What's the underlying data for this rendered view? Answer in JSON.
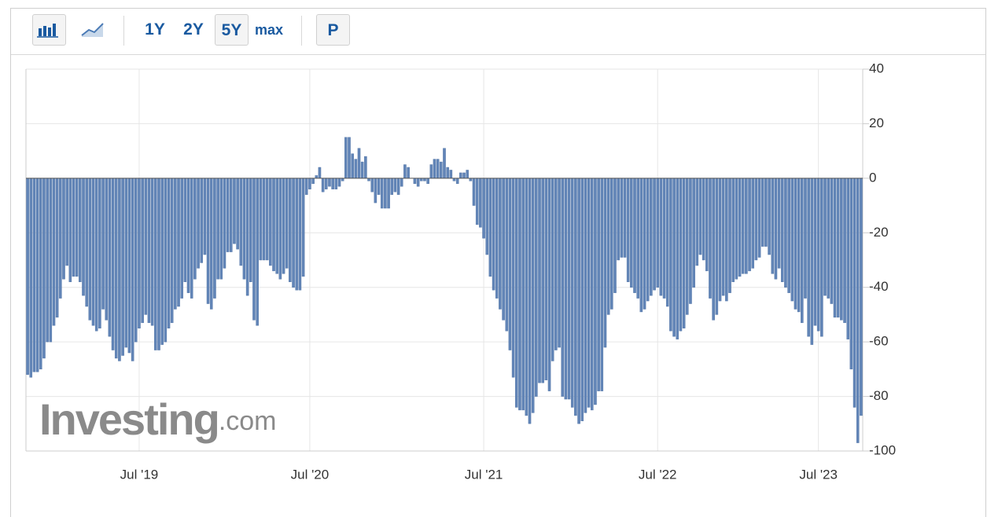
{
  "toolbar": {
    "ranges": [
      "1Y",
      "2Y",
      "5Y",
      "max"
    ],
    "price": "P"
  },
  "watermark": {
    "brand": "Investing",
    "suffix": ".com"
  },
  "chart_data": {
    "type": "bar",
    "color": "#6285b7",
    "grid": true,
    "ylim": [
      -100,
      40
    ],
    "yticks": [
      40,
      20,
      0,
      -20,
      -40,
      -60,
      -80,
      -100
    ],
    "categories": [
      null,
      null,
      null,
      null,
      null,
      null,
      null,
      null,
      null,
      null,
      null,
      null,
      null,
      null,
      null,
      null,
      null,
      null,
      null,
      null,
      null,
      null,
      null,
      null,
      null,
      null,
      null,
      null,
      null,
      null,
      null,
      null,
      null,
      null,
      "Jul '19",
      null,
      null,
      null,
      null,
      null,
      null,
      null,
      null,
      null,
      null,
      null,
      null,
      null,
      null,
      null,
      null,
      null,
      null,
      null,
      null,
      null,
      null,
      null,
      null,
      null,
      null,
      null,
      null,
      null,
      null,
      null,
      null,
      null,
      null,
      null,
      null,
      null,
      null,
      null,
      null,
      null,
      null,
      null,
      null,
      null,
      null,
      null,
      null,
      null,
      null,
      null,
      "Jul '20",
      null,
      null,
      null,
      null,
      null,
      null,
      null,
      null,
      null,
      null,
      null,
      null,
      null,
      null,
      null,
      null,
      null,
      null,
      null,
      null,
      null,
      null,
      null,
      null,
      null,
      null,
      null,
      null,
      null,
      null,
      null,
      null,
      null,
      null,
      null,
      null,
      null,
      null,
      null,
      null,
      null,
      null,
      null,
      null,
      null,
      null,
      null,
      null,
      null,
      null,
      null,
      null,
      "Jul '21",
      null,
      null,
      null,
      null,
      null,
      null,
      null,
      null,
      null,
      null,
      null,
      null,
      null,
      null,
      null,
      null,
      null,
      null,
      null,
      null,
      null,
      null,
      null,
      null,
      null,
      null,
      null,
      null,
      null,
      null,
      null,
      null,
      null,
      null,
      null,
      null,
      null,
      null,
      null,
      null,
      null,
      null,
      null,
      null,
      null,
      null,
      null,
      null,
      null,
      null,
      null,
      null,
      "Jul '22",
      null,
      null,
      null,
      null,
      null,
      null,
      null,
      null,
      null,
      null,
      null,
      null,
      null,
      null,
      null,
      null,
      null,
      null,
      null,
      null,
      null,
      null,
      null,
      null,
      null,
      null,
      null,
      null,
      null,
      null,
      null,
      null,
      null,
      null,
      null,
      null,
      null,
      null,
      null,
      null,
      null,
      null,
      null,
      null,
      null,
      null,
      null,
      null,
      "Jul '23",
      null,
      null,
      null,
      null,
      null,
      null,
      null,
      null,
      null,
      null,
      null,
      null,
      null
    ],
    "values": [
      -72,
      -73,
      -71,
      -71,
      -70,
      -66,
      -60,
      -60,
      -54,
      -51,
      -44,
      -37,
      -32,
      -38,
      -36,
      -36,
      -38,
      -43,
      -47,
      -52,
      -54,
      -56,
      -55,
      -48,
      -52,
      -58,
      -63,
      -66,
      -67,
      -65,
      -62,
      -64,
      -67,
      -60,
      -55,
      -53,
      -50,
      -53,
      -54,
      -63,
      -63,
      -61,
      -60,
      -55,
      -53,
      -48,
      -47,
      -44,
      -38,
      -42,
      -44,
      -37,
      -33,
      -31,
      -28,
      -46,
      -48,
      -44,
      -37,
      -37,
      -33,
      -27,
      -27,
      -24,
      -26,
      -32,
      -37,
      -43,
      -38,
      -52,
      -54,
      -30,
      -30,
      -30,
      -32,
      -34,
      -35,
      -37,
      -35,
      -33,
      -38,
      -40,
      -41,
      -41,
      -36,
      -6,
      -4,
      -2,
      1,
      4,
      -5,
      -4,
      -3,
      -4,
      -4,
      -3,
      -1,
      15,
      15,
      9,
      7,
      11,
      6,
      8,
      -1,
      -5,
      -9,
      -6,
      -11,
      -11,
      -11,
      -6,
      -5,
      -6,
      -3,
      5,
      4,
      0,
      -2,
      -3,
      -1,
      -1,
      -2,
      5,
      7,
      7,
      6,
      11,
      4,
      3,
      -1,
      -2,
      2,
      2,
      3,
      -1,
      -10,
      -17,
      -18,
      -22,
      -28,
      -36,
      -41,
      -44,
      -48,
      -52,
      -56,
      -63,
      -73,
      -84,
      -85,
      -85,
      -87,
      -90,
      -86,
      -80,
      -75,
      -75,
      -74,
      -78,
      -67,
      -63,
      -62,
      -80,
      -81,
      -81,
      -84,
      -87,
      -90,
      -89,
      -86,
      -84,
      -85,
      -83,
      -78,
      -78,
      -62,
      -50,
      -48,
      -42,
      -30,
      -29,
      -29,
      -38,
      -40,
      -42,
      -44,
      -49,
      -48,
      -45,
      -43,
      -41,
      -40,
      -43,
      -44,
      -47,
      -56,
      -58,
      -59,
      -56,
      -55,
      -50,
      -46,
      -40,
      -32,
      -28,
      -30,
      -34,
      -44,
      -52,
      -50,
      -45,
      -43,
      -45,
      -42,
      -38,
      -37,
      -36,
      -35,
      -35,
      -34,
      -33,
      -30,
      -29,
      -25,
      -25,
      -28,
      -35,
      -37,
      -33,
      -38,
      -40,
      -42,
      -45,
      -48,
      -49,
      -53,
      -44,
      -58,
      -61,
      -54,
      -56,
      -58,
      -43,
      -44,
      -46,
      -51,
      -51,
      -52,
      -53,
      -59,
      -70,
      -84,
      -97,
      -87
    ]
  }
}
